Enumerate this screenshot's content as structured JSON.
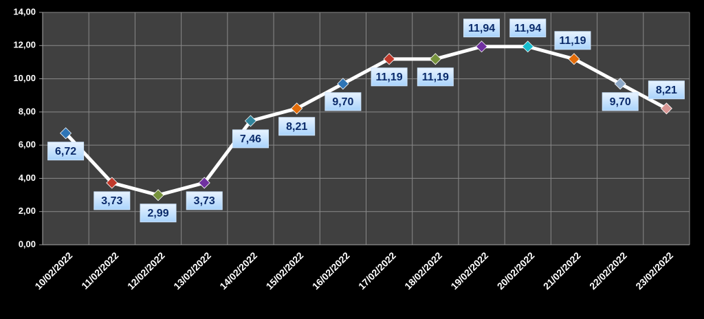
{
  "chart_data": {
    "type": "line",
    "categories": [
      "10/02/2022",
      "11/02/2022",
      "12/02/2022",
      "13/02/2022",
      "14/02/2022",
      "15/02/2022",
      "16/02/2022",
      "17/02/2022",
      "18/02/2022",
      "19/02/2022",
      "20/02/2022",
      "21/02/2022",
      "22/02/2022",
      "23/02/2022"
    ],
    "series": [
      {
        "color": "#ffffff",
        "values": [
          6.72,
          3.73,
          2.99,
          3.73,
          7.46,
          8.21,
          9.7,
          11.19,
          11.19,
          11.94,
          11.94,
          11.19,
          9.7,
          8.21
        ],
        "value_labels": [
          "6,72",
          "3,73",
          "2,99",
          "3,73",
          "7,46",
          "8,21",
          "9,70",
          "11,19",
          "11,19",
          "11,94",
          "11,94",
          "11,19",
          "9,70",
          "8,21"
        ],
        "point_colors": [
          "#2e75b6",
          "#c0392b",
          "#76923c",
          "#7030a0",
          "#31859c",
          "#e36c09",
          "#2e75b6",
          "#c0392b",
          "#76923c",
          "#7030a0",
          "#17becf",
          "#e36c09",
          "#8ea9c8",
          "#d99694"
        ]
      }
    ],
    "ylim": [
      0,
      14
    ],
    "yticks": [
      {
        "value": 0,
        "label": "0,00"
      },
      {
        "value": 2,
        "label": "2,00"
      },
      {
        "value": 4,
        "label": "4,00"
      },
      {
        "value": 6,
        "label": "6,00"
      },
      {
        "value": 8,
        "label": "8,00"
      },
      {
        "value": 10,
        "label": "10,00"
      },
      {
        "value": 12,
        "label": "12,00"
      },
      {
        "value": 14,
        "label": "14,00"
      }
    ],
    "grid": true
  }
}
